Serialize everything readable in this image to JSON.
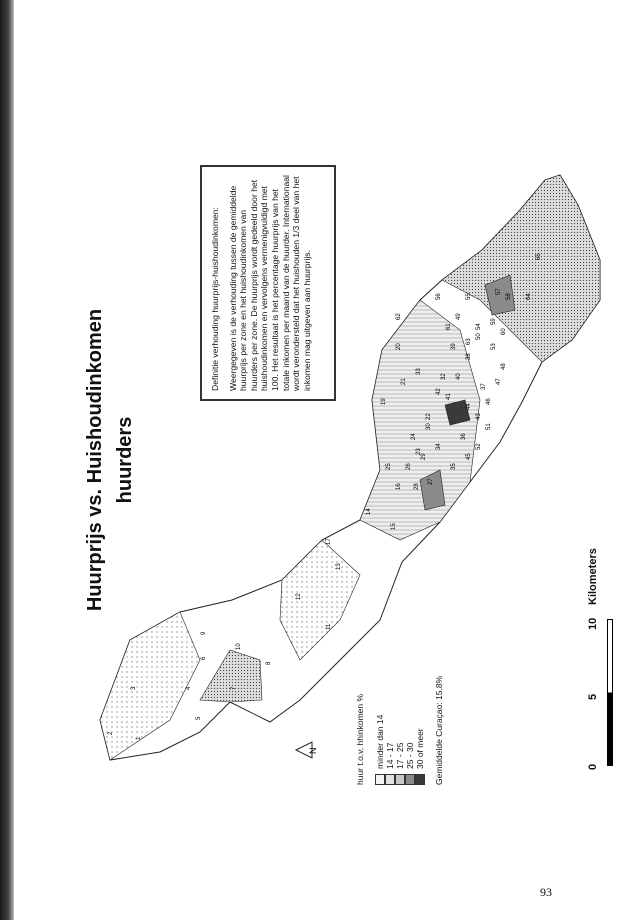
{
  "title": "Huurprijs vs. Huishoudinkomen huurders",
  "definition": {
    "heading": "Definitie verhouding huurprijs-huishoudinkomen:",
    "body": "Weergegeven is de verhouding tussen de gemiddelde huurprijs per zone en het huishoudinkomen van huurders per zone. De huurprijs wordt gedeeld door het huishoudinkomen en vervolgens vermenigvuldigd met 100. Het resultaat is het percentage huurprijs van het totale inkomen per maand van de huurder. Internationaal wordt verondersteld dat het huishouden 1/3 deel van het inkomen mag uitgeven aan huurprijs."
  },
  "legend": {
    "title": "huur t.o.v. hhinkomen %",
    "classes": [
      {
        "label": "minder dan 14",
        "color": "#f4f4f4",
        "pattern": "sparse-dots"
      },
      {
        "label": "14 - 17",
        "color": "#e2e2e2",
        "pattern": "lines"
      },
      {
        "label": "17 - 25",
        "color": "#c8c8c8",
        "pattern": "dense-dots"
      },
      {
        "label": "25 - 30",
        "color": "#8a8a8a",
        "pattern": "solid"
      },
      {
        "label": "30 of meer",
        "color": "#3a3a3a",
        "pattern": "solid"
      }
    ],
    "average": "Gemiddelde Curaçao: 15.8%"
  },
  "scale": {
    "ticks": [
      "0",
      "5",
      "10"
    ],
    "unit": "Kilometers"
  },
  "north_label": "N",
  "zones": [
    "1",
    "2",
    "3",
    "4",
    "5",
    "6",
    "7",
    "8",
    "9",
    "10",
    "11",
    "12",
    "13",
    "14",
    "15",
    "16",
    "17",
    "19",
    "20",
    "21",
    "22",
    "23",
    "24",
    "25",
    "26",
    "27",
    "28",
    "29",
    "30",
    "32",
    "33",
    "34",
    "35",
    "36",
    "37",
    "38",
    "39",
    "40",
    "41",
    "42",
    "43",
    "44",
    "45",
    "46",
    "47",
    "48",
    "49",
    "50",
    "51",
    "52",
    "53",
    "54",
    "55",
    "56",
    "57",
    "58",
    "59",
    "60",
    "61",
    "62",
    "63",
    "64",
    "65"
  ],
  "page_number": "93"
}
